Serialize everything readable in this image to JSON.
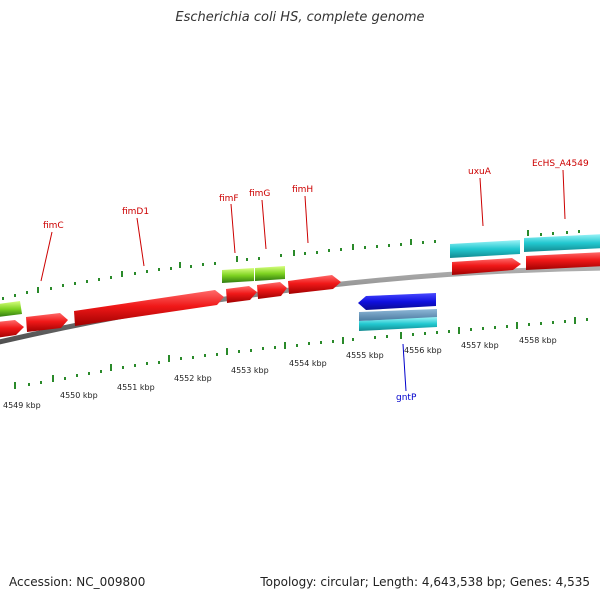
{
  "title": "Escherichia coli HS, complete genome",
  "footer": {
    "accession": "Accession: NC_009800",
    "summary": "Topology: circular; Length: 4,643,538 bp; Genes: 4,535"
  },
  "ruler_labels": [
    "4549 kbp",
    "4550 kbp",
    "4551 kbp",
    "4552 kbp",
    "4553 kbp",
    "4554 kbp",
    "4555 kbp",
    "4556 kbp",
    "4557 kbp",
    "4558 kbp"
  ],
  "gene_labels_top": [
    "fimC",
    "fimD1",
    "fimF",
    "fimG",
    "fimH",
    "uxuA",
    "EcHS_A4549"
  ],
  "gene_labels_bottom": [
    "gntP"
  ],
  "colors": {
    "forward_gene": "#e41a1c",
    "reverse_gene": "#1010e0",
    "cds_cyan": "#22c8d0",
    "rna_green": "#7ed321",
    "backbone": "#808080",
    "ticks": "#2a8a2a",
    "label_top": "#cc0000",
    "label_bottom": "#0000cc"
  }
}
